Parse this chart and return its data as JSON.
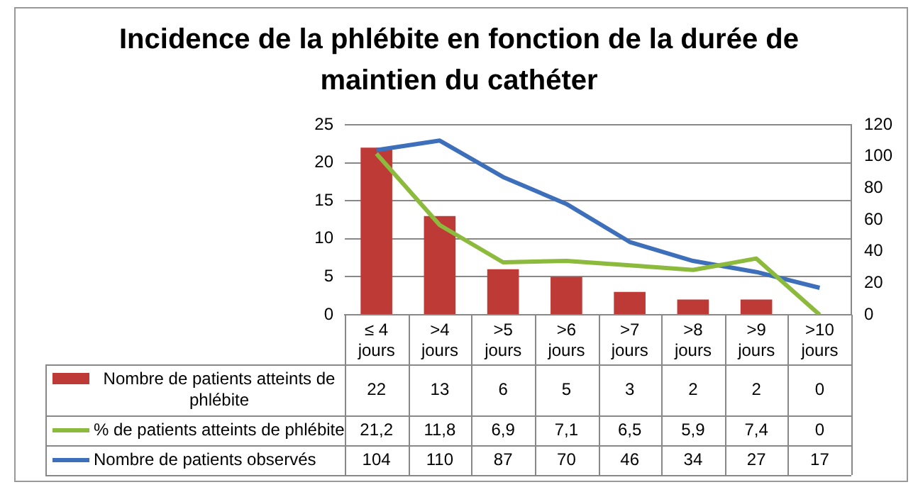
{
  "chart_data": {
    "type": "bar",
    "title": "Incidence de la phlébite en fonction de la durée de maintien du cathéter",
    "categories": [
      "≤ 4 jours",
      ">4 jours",
      ">5 jours",
      ">6 jours",
      ">7 jours",
      ">8 jours",
      ">9 jours",
      ">10 jours"
    ],
    "series": [
      {
        "name": "Nombre de patients atteints de phlébite",
        "color": "#be3a36",
        "values": [
          22,
          13,
          6,
          5,
          3,
          2,
          2,
          0
        ],
        "value_labels": [
          "22",
          "13",
          "6",
          "5",
          "3",
          "2",
          "2",
          "0"
        ]
      },
      {
        "name": "% de patients atteints de phlébite",
        "type": "line",
        "color": "#8cba3c",
        "values": [
          21.2,
          11.8,
          6.9,
          7.1,
          6.5,
          5.9,
          7.4,
          0
        ],
        "value_labels": [
          "21,2",
          "11,8",
          "6,9",
          "7,1",
          "6,5",
          "5,9",
          "7,4",
          "0"
        ]
      },
      {
        "name": "Nombre de patients observés",
        "type": "line",
        "axis": "y2",
        "color": "#3d6fbb",
        "values": [
          104,
          110,
          87,
          70,
          46,
          34,
          27,
          17
        ],
        "value_labels": [
          "104",
          "110",
          "87",
          "70",
          "46",
          "34",
          "27",
          "17"
        ]
      }
    ],
    "ylim": [
      0,
      25
    ],
    "yticks": [
      0,
      5,
      10,
      15,
      20,
      25
    ],
    "y2lim": [
      0,
      120
    ],
    "y2ticks": [
      0,
      20,
      40,
      60,
      80,
      100,
      120
    ],
    "grid": "y",
    "legend": "bottom",
    "marker": "none",
    "line_style": "solid"
  }
}
